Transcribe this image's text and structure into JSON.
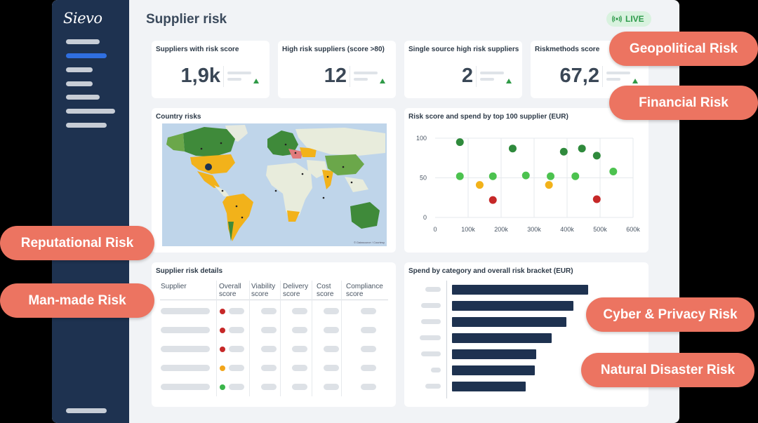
{
  "app": {
    "logo": "Sievo",
    "page_title": "Supplier risk",
    "live_label": "LIVE"
  },
  "kpis": [
    {
      "title": "Suppliers with risk score",
      "value": "1,9k"
    },
    {
      "title": "High risk suppliers (score >80)",
      "value": "12"
    },
    {
      "title": "Single source high risk suppliers",
      "value": "2"
    },
    {
      "title": "Riskmethods score",
      "value": "67,2"
    }
  ],
  "map_card": {
    "title": "Country risks",
    "attribution": "© Datasource / Courtesy"
  },
  "scatter_card": {
    "title": "Risk score and spend by top 100 supplier (EUR)"
  },
  "details_card": {
    "title": "Supplier risk details",
    "columns": [
      "Supplier",
      "Overall score",
      "Viability score",
      "Delivery score",
      "Cost score",
      "Compliance score"
    ],
    "row_status_colors": [
      "#c62828",
      "#c62828",
      "#c62828",
      "#f2a51a",
      "#3ab54a"
    ]
  },
  "bars_card": {
    "title": "Spend by category and overall risk bracket (EUR)"
  },
  "chart_data": [
    {
      "type": "scatter",
      "title": "Risk score and spend by top 100 supplier (EUR)",
      "x_ticks": [
        "0",
        "100k",
        "200k",
        "300k",
        "400k",
        "500k",
        "600k"
      ],
      "y_ticks": [
        "0",
        "50",
        "100"
      ],
      "xlim": [
        0,
        600000
      ],
      "ylim": [
        0,
        100
      ],
      "points": [
        {
          "x": 75000,
          "y": 95,
          "color": "#2f8a3c"
        },
        {
          "x": 75000,
          "y": 52,
          "color": "#4cc24f"
        },
        {
          "x": 135000,
          "y": 41,
          "color": "#f2b21a"
        },
        {
          "x": 175000,
          "y": 52,
          "color": "#4cc24f"
        },
        {
          "x": 175000,
          "y": 22,
          "color": "#c62828"
        },
        {
          "x": 235000,
          "y": 87,
          "color": "#2f8a3c"
        },
        {
          "x": 275000,
          "y": 53,
          "color": "#4cc24f"
        },
        {
          "x": 345000,
          "y": 41,
          "color": "#f2b21a"
        },
        {
          "x": 350000,
          "y": 52,
          "color": "#4cc24f"
        },
        {
          "x": 390000,
          "y": 83,
          "color": "#2f8a3c"
        },
        {
          "x": 425000,
          "y": 52,
          "color": "#4cc24f"
        },
        {
          "x": 445000,
          "y": 87,
          "color": "#2f8a3c"
        },
        {
          "x": 490000,
          "y": 78,
          "color": "#2f8a3c"
        },
        {
          "x": 490000,
          "y": 23,
          "color": "#c62828"
        },
        {
          "x": 540000,
          "y": 58,
          "color": "#4cc24f"
        }
      ]
    },
    {
      "type": "bar",
      "orientation": "horizontal",
      "title": "Spend by category and overall risk bracket (EUR)",
      "values": [
        100,
        89,
        84,
        73,
        62,
        61,
        54
      ],
      "xlim": [
        0,
        100
      ]
    }
  ],
  "badges": [
    "Geopolitical Risk",
    "Financial Risk",
    "Reputational Risk",
    "Man-made Risk",
    "Cyber & Privacy Risk",
    "Natural Disaster Risk"
  ]
}
